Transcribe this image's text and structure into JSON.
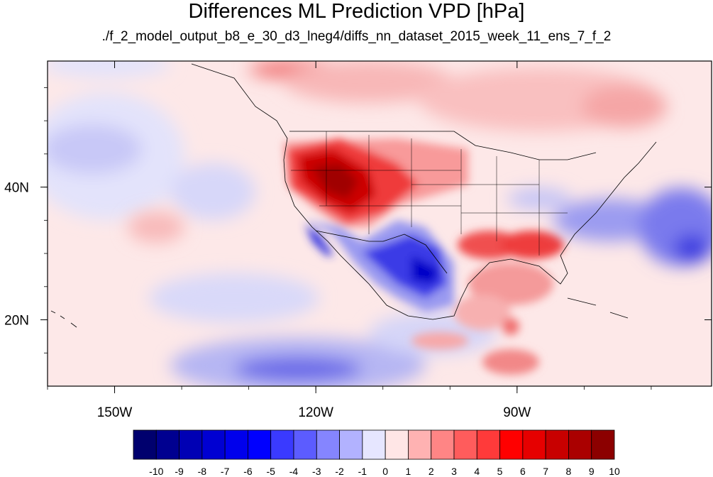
{
  "title": "Differences ML Prediction VPD [hPa]",
  "subtitle": "./f_2_model_output_b8_e_30_d3_lneg4/diffs_nn_dataset_2015_week_11_ens_7_f_2",
  "map": {
    "projection": "cylindrical equidistant",
    "lon_range": [
      -160,
      -61
    ],
    "lat_range": [
      10,
      59
    ],
    "lon_ticks": [
      {
        "value": -150,
        "label": "150W"
      },
      {
        "value": -120,
        "label": "120W"
      },
      {
        "value": -90,
        "label": "90W"
      }
    ],
    "lat_ticks": [
      {
        "value": 40,
        "label": "40N"
      },
      {
        "value": 20,
        "label": "20N"
      }
    ],
    "features": [
      "coastlines",
      "US state boundaries",
      "Mexico",
      "Canada provinces"
    ]
  },
  "colorbar": {
    "labels": [
      "-10",
      "-9",
      "-8",
      "-7",
      "-6",
      "-5",
      "-4",
      "-3",
      "-2",
      "-1",
      "0",
      "1",
      "2",
      "3",
      "4",
      "5",
      "6",
      "7",
      "8",
      "9",
      "10"
    ],
    "colors": [
      "#00006e",
      "#000090",
      "#0000b4",
      "#0000d2",
      "#0000ec",
      "#0000ff",
      "#3a3aff",
      "#5c5cff",
      "#8585ff",
      "#b2b2ff",
      "#e6e6ff",
      "#ffe6e6",
      "#ffb2b2",
      "#ff8585",
      "#ff5c5c",
      "#ff3a3a",
      "#ff0000",
      "#e60000",
      "#c80000",
      "#aa0000",
      "#8c0000"
    ]
  }
}
